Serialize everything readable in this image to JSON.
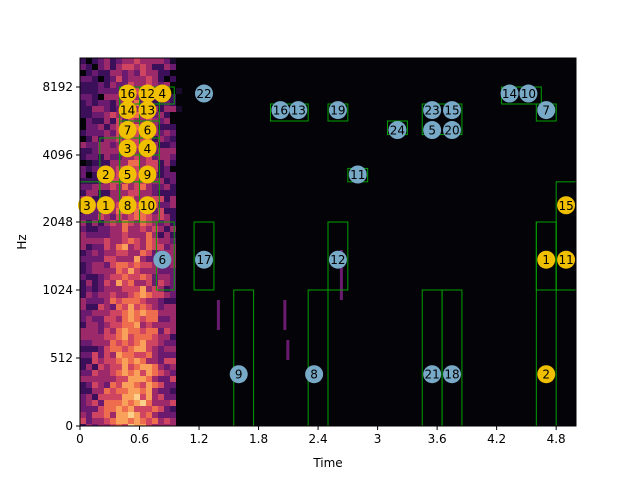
{
  "chart_data": {
    "type": "heatmap",
    "title": "",
    "xlabel": "Time",
    "ylabel": "Hz",
    "xlim": [
      0,
      5.0
    ],
    "ylim": [
      0,
      9600
    ],
    "x_ticks": [
      0,
      0.6,
      1.2,
      1.8,
      2.4,
      3.0,
      3.6,
      4.2,
      4.8
    ],
    "x_tick_labels": [
      "0",
      "0.6",
      "1.2",
      "1.8",
      "2.4",
      "3",
      "3.6",
      "4.2",
      "4.8"
    ],
    "y_tick_labels": [
      "0",
      "512",
      "1024",
      "2048",
      "4096",
      "8192"
    ],
    "colors": {
      "yellow_marker": "#f0c000",
      "blue_marker": "#78aac8",
      "box": "#00a000",
      "background": "#030308"
    },
    "boxes": [
      {
        "t0": 0.0,
        "t1": 0.2,
        "f0": 2048,
        "f1": 3276
      },
      {
        "t0": 0.2,
        "t1": 0.4,
        "f0": 2048,
        "f1": 3276
      },
      {
        "t0": 0.4,
        "t1": 0.6,
        "f0": 2048,
        "f1": 3276
      },
      {
        "t0": 0.6,
        "t1": 0.8,
        "f0": 2048,
        "f1": 3276
      },
      {
        "t0": 0.4,
        "t1": 0.6,
        "f0": 3276,
        "f1": 4096
      },
      {
        "t0": 0.6,
        "t1": 0.8,
        "f0": 3276,
        "f1": 4096
      },
      {
        "t0": 0.2,
        "t1": 0.4,
        "f0": 3276,
        "f1": 5120
      },
      {
        "t0": 0.4,
        "t1": 0.6,
        "f0": 4096,
        "f1": 5120
      },
      {
        "t0": 0.6,
        "t1": 0.8,
        "f0": 4096,
        "f1": 5120
      },
      {
        "t0": 0.4,
        "t1": 0.6,
        "f0": 5120,
        "f1": 6144
      },
      {
        "t0": 0.6,
        "t1": 0.8,
        "f0": 5120,
        "f1": 6144
      },
      {
        "t0": 0.4,
        "t1": 0.6,
        "f0": 6144,
        "f1": 8192
      },
      {
        "t0": 0.6,
        "t1": 0.8,
        "f0": 6144,
        "f1": 8192
      },
      {
        "t0": 0.4,
        "t1": 0.6,
        "f0": 7168,
        "f1": 8192
      },
      {
        "t0": 0.6,
        "t1": 0.8,
        "f0": 7168,
        "f1": 8192
      },
      {
        "t0": 0.8,
        "t1": 0.95,
        "f0": 7168,
        "f1": 8192
      },
      {
        "t0": 0.77,
        "t1": 0.95,
        "f0": 1024,
        "f1": 2048
      },
      {
        "t0": 1.15,
        "t1": 1.35,
        "f0": 1024,
        "f1": 2048
      },
      {
        "t0": 1.55,
        "t1": 1.75,
        "f0": 0,
        "f1": 1024
      },
      {
        "t0": 1.92,
        "t1": 2.3,
        "f0": 6144,
        "f1": 7168
      },
      {
        "t0": 2.3,
        "t1": 2.5,
        "f0": 0,
        "f1": 1024
      },
      {
        "t0": 2.5,
        "t1": 2.7,
        "f0": 1024,
        "f1": 2048
      },
      {
        "t0": 2.5,
        "t1": 2.7,
        "f0": 6144,
        "f1": 7168
      },
      {
        "t0": 2.7,
        "t1": 2.9,
        "f0": 3276,
        "f1": 3686
      },
      {
        "t0": 3.1,
        "t1": 3.3,
        "f0": 5325,
        "f1": 6144
      },
      {
        "t0": 3.45,
        "t1": 3.65,
        "f0": 0,
        "f1": 1024
      },
      {
        "t0": 3.65,
        "t1": 3.85,
        "f0": 0,
        "f1": 1024
      },
      {
        "t0": 3.45,
        "t1": 3.85,
        "f0": 5325,
        "f1": 7168
      },
      {
        "t0": 4.25,
        "t1": 4.65,
        "f0": 7168,
        "f1": 8192
      },
      {
        "t0": 4.6,
        "t1": 4.8,
        "f0": 6144,
        "f1": 7168
      },
      {
        "t0": 4.6,
        "t1": 4.8,
        "f0": 0,
        "f1": 2048
      },
      {
        "t0": 4.6,
        "t1": 4.8,
        "f0": 1024,
        "f1": 2048
      },
      {
        "t0": 4.8,
        "t1": 5.0,
        "f0": 1024,
        "f1": 3276
      }
    ],
    "markers": [
      {
        "label": "3",
        "t": 0.07,
        "f": 2560,
        "color": "yellow"
      },
      {
        "label": "1",
        "t": 0.26,
        "f": 2560,
        "color": "yellow"
      },
      {
        "label": "8",
        "t": 0.48,
        "f": 2560,
        "color": "yellow"
      },
      {
        "label": "10",
        "t": 0.68,
        "f": 2560,
        "color": "yellow"
      },
      {
        "label": "2",
        "t": 0.26,
        "f": 3500,
        "color": "yellow"
      },
      {
        "label": "5",
        "t": 0.48,
        "f": 3500,
        "color": "yellow"
      },
      {
        "label": "9",
        "t": 0.68,
        "f": 3500,
        "color": "yellow"
      },
      {
        "label": "3",
        "t": 0.48,
        "f": 4500,
        "color": "yellow"
      },
      {
        "label": "4",
        "t": 0.68,
        "f": 4500,
        "color": "yellow"
      },
      {
        "label": "7",
        "t": 0.48,
        "f": 5600,
        "color": "yellow"
      },
      {
        "label": "6",
        "t": 0.68,
        "f": 5600,
        "color": "yellow"
      },
      {
        "label": "14",
        "t": 0.48,
        "f": 6800,
        "color": "yellow"
      },
      {
        "label": "13",
        "t": 0.68,
        "f": 6800,
        "color": "yellow"
      },
      {
        "label": "16",
        "t": 0.48,
        "f": 7800,
        "color": "yellow"
      },
      {
        "label": "12",
        "t": 0.68,
        "f": 7800,
        "color": "yellow"
      },
      {
        "label": "4",
        "t": 0.83,
        "f": 7800,
        "color": "yellow"
      },
      {
        "label": "6",
        "t": 0.83,
        "f": 1480,
        "color": "blue"
      },
      {
        "label": "22",
        "t": 1.25,
        "f": 7800,
        "color": "blue"
      },
      {
        "label": "17",
        "t": 1.25,
        "f": 1480,
        "color": "blue"
      },
      {
        "label": "9",
        "t": 1.6,
        "f": 390,
        "color": "blue"
      },
      {
        "label": "16",
        "t": 2.02,
        "f": 6800,
        "color": "blue"
      },
      {
        "label": "13",
        "t": 2.2,
        "f": 6800,
        "color": "blue"
      },
      {
        "label": "8",
        "t": 2.36,
        "f": 390,
        "color": "blue"
      },
      {
        "label": "19",
        "t": 2.6,
        "f": 6800,
        "color": "blue"
      },
      {
        "label": "12",
        "t": 2.6,
        "f": 1480,
        "color": "blue"
      },
      {
        "label": "11",
        "t": 2.8,
        "f": 3500,
        "color": "blue"
      },
      {
        "label": "24",
        "t": 3.2,
        "f": 5600,
        "color": "blue"
      },
      {
        "label": "23",
        "t": 3.55,
        "f": 6800,
        "color": "blue"
      },
      {
        "label": "15",
        "t": 3.75,
        "f": 6800,
        "color": "blue"
      },
      {
        "label": "5",
        "t": 3.55,
        "f": 5600,
        "color": "blue"
      },
      {
        "label": "20",
        "t": 3.75,
        "f": 5600,
        "color": "blue"
      },
      {
        "label": "21",
        "t": 3.55,
        "f": 390,
        "color": "blue"
      },
      {
        "label": "18",
        "t": 3.75,
        "f": 390,
        "color": "blue"
      },
      {
        "label": "14",
        "t": 4.33,
        "f": 7800,
        "color": "blue"
      },
      {
        "label": "10",
        "t": 4.52,
        "f": 7800,
        "color": "blue"
      },
      {
        "label": "7",
        "t": 4.7,
        "f": 6800,
        "color": "blue"
      },
      {
        "label": "1",
        "t": 4.7,
        "f": 1480,
        "color": "yellow"
      },
      {
        "label": "11",
        "t": 4.9,
        "f": 1480,
        "color": "yellow"
      },
      {
        "label": "15",
        "t": 4.9,
        "f": 2560,
        "color": "yellow"
      },
      {
        "label": "2",
        "t": 4.7,
        "f": 390,
        "color": "yellow"
      }
    ]
  }
}
